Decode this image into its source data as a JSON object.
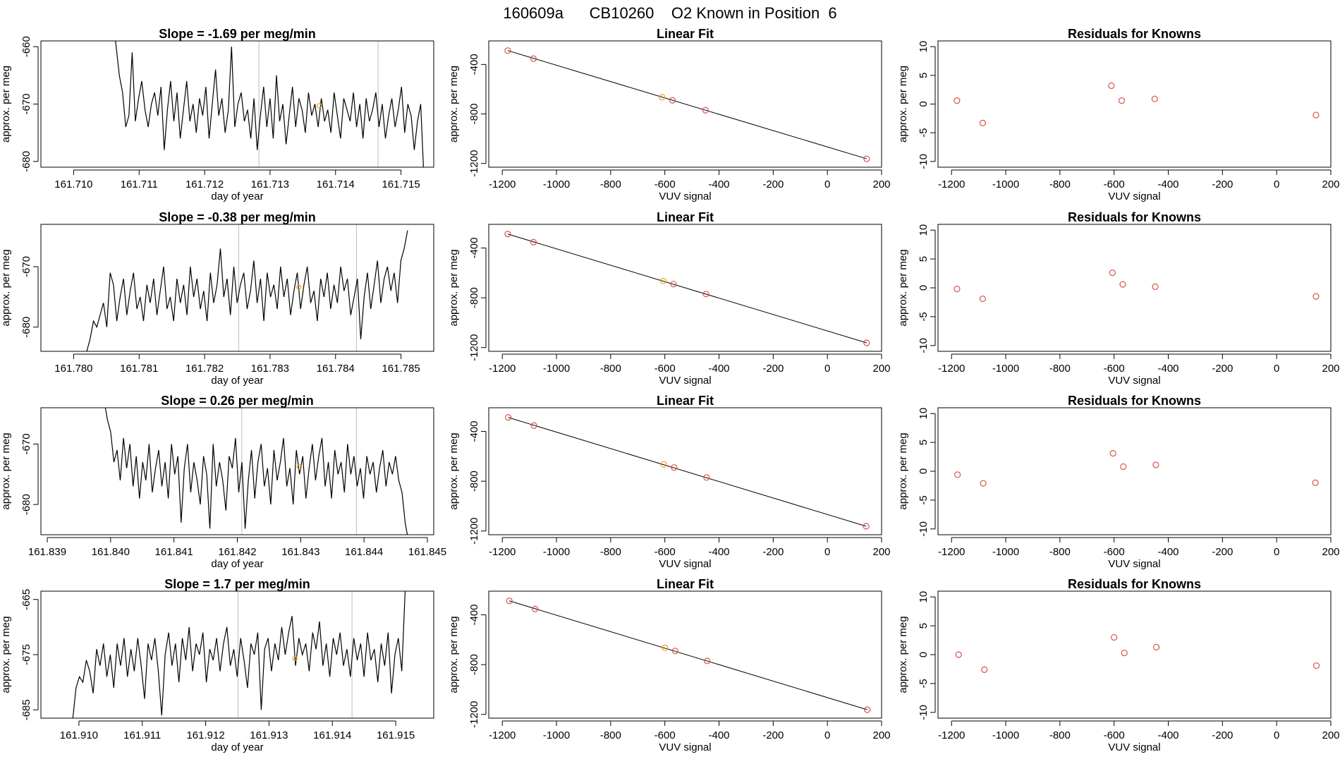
{
  "figure_title": "160609a      CB10260    O2 Known in Position  6",
  "colors": {
    "trace": "#000000",
    "fit_line": "#000000",
    "known_points": "#d9534f",
    "highlight_point": "#f0a020",
    "marker_lines": "#bbbbbb",
    "frame": "#000000"
  },
  "chart_data": [
    {
      "type": "line",
      "row": 0,
      "col": 0,
      "title": "Slope =  -1.69  per meg/min",
      "xlabel": "day of year",
      "ylabel": "approx. per meg",
      "xlim": [
        161.7095,
        161.7155
      ],
      "ylim": [
        -681,
        -659
      ],
      "xticks": [
        "161.710",
        "161.711",
        "161.712",
        "161.713",
        "161.714",
        "161.715"
      ],
      "xtick_values": [
        161.71,
        161.711,
        161.712,
        161.713,
        161.714,
        161.715
      ],
      "yticks": [
        "-680",
        "-670",
        "-660"
      ],
      "ytick_values": [
        -680,
        -670,
        -660
      ],
      "vlines": [
        161.71283,
        161.71465
      ],
      "highlight": {
        "x": 161.71375,
        "y": -670.3
      },
      "trace": {
        "x0": 161.7106,
        "x1": 161.71535,
        "y": [
          -655,
          -660,
          -665,
          -668,
          -674,
          -672,
          -661,
          -673,
          -669,
          -666,
          -671,
          -674,
          -670,
          -668,
          -672,
          -667,
          -678,
          -671,
          -666,
          -673,
          -668,
          -676,
          -671,
          -666,
          -673,
          -670,
          -675,
          -669,
          -672,
          -667,
          -676,
          -670,
          -664,
          -672,
          -669,
          -675,
          -671,
          -660,
          -674,
          -670,
          -668,
          -673,
          -671,
          -676,
          -669,
          -678,
          -672,
          -667,
          -674,
          -669,
          -676,
          -665,
          -673,
          -670,
          -677,
          -672,
          -667,
          -674,
          -669,
          -671,
          -675,
          -668,
          -672,
          -670,
          -674,
          -669,
          -673,
          -671,
          -675,
          -668,
          -672,
          -676,
          -669,
          -671,
          -673,
          -668,
          -674,
          -670,
          -676,
          -669,
          -673,
          -671,
          -668,
          -674,
          -670,
          -676,
          -672,
          -669,
          -674,
          -671,
          -667,
          -675,
          -670,
          -672,
          -678,
          -673,
          -670,
          -683
        ]
      }
    },
    {
      "type": "scatter",
      "row": 0,
      "col": 1,
      "title": "Linear Fit",
      "xlabel": "VUV signal",
      "ylabel": "approx. per meg",
      "xlim": [
        -1250,
        200
      ],
      "ylim": [
        -1230,
        -210
      ],
      "xticks": [
        "-1200",
        "-1000",
        "-800",
        "-600",
        "-400",
        "-200",
        "0",
        "200"
      ],
      "xtick_values": [
        -1200,
        -1000,
        -800,
        -600,
        -400,
        -200,
        0,
        200
      ],
      "yticks": [
        "-1200",
        "-800",
        "-400"
      ],
      "ytick_values": [
        -1200,
        -800,
        -400
      ],
      "fit_line": [
        [
          -1180,
          -288
        ],
        [
          145,
          -1162
        ]
      ],
      "points": [
        [
          -1180,
          -288
        ],
        [
          -1085,
          -353
        ],
        [
          -610,
          -665
        ],
        [
          -572,
          -690
        ],
        [
          -450,
          -770
        ],
        [
          145,
          -1162
        ]
      ],
      "highlight_index": 2
    },
    {
      "type": "scatter",
      "row": 0,
      "col": 2,
      "title": "Residuals for Knowns",
      "xlabel": "VUV signal",
      "ylabel": "approx. per meg",
      "xlim": [
        -1250,
        200
      ],
      "ylim": [
        -11,
        11
      ],
      "xticks": [
        "-1200",
        "-1000",
        "-800",
        "-600",
        "-400",
        "-200",
        "0",
        "200"
      ],
      "xtick_values": [
        -1200,
        -1000,
        -800,
        -600,
        -400,
        -200,
        0,
        200
      ],
      "yticks": [
        "-10",
        "-5",
        "0",
        "5",
        "10"
      ],
      "ytick_values": [
        -10,
        -5,
        0,
        5,
        10
      ],
      "points": [
        [
          -1180,
          0.6
        ],
        [
          -1085,
          -3.3
        ],
        [
          -610,
          3.2
        ],
        [
          -572,
          0.6
        ],
        [
          -450,
          0.9
        ],
        [
          145,
          -1.9
        ]
      ]
    },
    {
      "type": "line",
      "row": 1,
      "col": 0,
      "title": "Slope =  -0.38  per meg/min",
      "xlabel": "day of year",
      "ylabel": "approx. per meg",
      "xlim": [
        161.7795,
        161.7855
      ],
      "ylim": [
        -684,
        -663
      ],
      "xticks": [
        "161.780",
        "161.781",
        "161.782",
        "161.783",
        "161.784",
        "161.785"
      ],
      "xtick_values": [
        161.78,
        161.781,
        161.782,
        161.783,
        161.784,
        161.785
      ],
      "yticks": [
        "-680",
        "-670"
      ],
      "ytick_values": [
        -680,
        -670
      ],
      "vlines": [
        161.78252,
        161.78432
      ],
      "highlight": {
        "x": 161.78344,
        "y": -673.4
      },
      "trace": {
        "x0": 161.7802,
        "x1": 161.7851,
        "y": [
          -684,
          -682,
          -679,
          -680,
          -678,
          -676,
          -680,
          -671,
          -673,
          -679,
          -675,
          -672,
          -678,
          -674,
          -671,
          -677,
          -675,
          -679,
          -673,
          -676,
          -672,
          -678,
          -674,
          -670,
          -677,
          -675,
          -679,
          -672,
          -676,
          -673,
          -678,
          -670,
          -675,
          -672,
          -677,
          -674,
          -679,
          -671,
          -676,
          -673,
          -667,
          -675,
          -672,
          -678,
          -670,
          -676,
          -673,
          -671,
          -677,
          -674,
          -669,
          -676,
          -672,
          -679,
          -671,
          -675,
          -673,
          -677,
          -670,
          -675,
          -672,
          -678,
          -674,
          -671,
          -677,
          -673,
          -670,
          -676,
          -674,
          -679,
          -672,
          -675,
          -671,
          -677,
          -673,
          -676,
          -670,
          -674,
          -672,
          -678,
          -675,
          -672,
          -682,
          -675,
          -671,
          -677,
          -673,
          -669,
          -676,
          -672,
          -670,
          -674,
          -671,
          -676,
          -669,
          -667,
          -664
        ]
      }
    },
    {
      "type": "scatter",
      "row": 1,
      "col": 1,
      "title": "Linear Fit",
      "xlabel": "VUV signal",
      "ylabel": "approx. per meg",
      "xlim": [
        -1250,
        200
      ],
      "ylim": [
        -1230,
        -210
      ],
      "xticks": [
        "-1200",
        "-1000",
        "-800",
        "-600",
        "-400",
        "-200",
        "0",
        "200"
      ],
      "xtick_values": [
        -1200,
        -1000,
        -800,
        -600,
        -400,
        -200,
        0,
        200
      ],
      "yticks": [
        "-1200",
        "-800",
        "-400"
      ],
      "ytick_values": [
        -1200,
        -800,
        -400
      ],
      "fit_line": [
        [
          -1180,
          -288
        ],
        [
          145,
          -1162
        ]
      ],
      "points": [
        [
          -1180,
          -288
        ],
        [
          -1085,
          -353
        ],
        [
          -606,
          -665
        ],
        [
          -568,
          -690
        ],
        [
          -448,
          -770
        ],
        [
          145,
          -1162
        ]
      ],
      "highlight_index": 2
    },
    {
      "type": "scatter",
      "row": 1,
      "col": 2,
      "title": "Residuals for Knowns",
      "xlabel": "VUV signal",
      "ylabel": "approx. per meg",
      "xlim": [
        -1250,
        200
      ],
      "ylim": [
        -11,
        11
      ],
      "xticks": [
        "-1200",
        "-1000",
        "-800",
        "-600",
        "-400",
        "-200",
        "0",
        "200"
      ],
      "xtick_values": [
        -1200,
        -1000,
        -800,
        -600,
        -400,
        -200,
        0,
        200
      ],
      "yticks": [
        "-10",
        "-5",
        "0",
        "5",
        "10"
      ],
      "ytick_values": [
        -10,
        -5,
        0,
        5,
        10
      ],
      "points": [
        [
          -1180,
          -0.2
        ],
        [
          -1085,
          -1.9
        ],
        [
          -606,
          2.6
        ],
        [
          -568,
          0.6
        ],
        [
          -448,
          0.2
        ],
        [
          145,
          -1.5
        ]
      ]
    },
    {
      "type": "line",
      "row": 2,
      "col": 0,
      "title": "Slope =  0.26  per meg/min",
      "xlabel": "day of year",
      "ylabel": "approx. per meg",
      "xlim": [
        161.8389,
        161.8451
      ],
      "ylim": [
        -685,
        -664
      ],
      "xticks": [
        "161.839",
        "161.840",
        "161.841",
        "161.842",
        "161.843",
        "161.844",
        "161.845"
      ],
      "xtick_values": [
        161.839,
        161.84,
        161.841,
        161.842,
        161.843,
        161.844,
        161.845
      ],
      "yticks": [
        "-680",
        "-670"
      ],
      "ytick_values": [
        -680,
        -670
      ],
      "vlines": [
        161.84207,
        161.84388
      ],
      "highlight": {
        "x": 161.84298,
        "y": -673.8
      },
      "trace": {
        "x0": 161.8399,
        "x1": 161.8447,
        "y": [
          -663,
          -666,
          -668,
          -673,
          -671,
          -676,
          -669,
          -674,
          -670,
          -677,
          -672,
          -679,
          -673,
          -676,
          -670,
          -678,
          -674,
          -671,
          -677,
          -673,
          -679,
          -670,
          -675,
          -672,
          -683,
          -674,
          -670,
          -678,
          -673,
          -676,
          -680,
          -672,
          -675,
          -684,
          -670,
          -677,
          -673,
          -676,
          -681,
          -672,
          -674,
          -669,
          -678,
          -673,
          -684,
          -676,
          -671,
          -679,
          -673,
          -670,
          -677,
          -674,
          -680,
          -671,
          -676,
          -673,
          -669,
          -677,
          -674,
          -680,
          -671,
          -675,
          -672,
          -679,
          -674,
          -670,
          -676,
          -672,
          -669,
          -677,
          -673,
          -679,
          -671,
          -675,
          -673,
          -678,
          -670,
          -675,
          -672,
          -677,
          -674,
          -679,
          -672,
          -675,
          -673,
          -678,
          -674,
          -671,
          -677,
          -673,
          -675,
          -672,
          -676,
          -678,
          -683,
          -686
        ]
      }
    },
    {
      "type": "scatter",
      "row": 2,
      "col": 1,
      "title": "Linear Fit",
      "xlabel": "VUV signal",
      "ylabel": "approx. per meg",
      "xlim": [
        -1250,
        200
      ],
      "ylim": [
        -1230,
        -210
      ],
      "xticks": [
        "-1200",
        "-1000",
        "-800",
        "-600",
        "-400",
        "-200",
        "0",
        "200"
      ],
      "xtick_values": [
        -1200,
        -1000,
        -800,
        -600,
        -400,
        -200,
        0,
        200
      ],
      "yticks": [
        "-1200",
        "-800",
        "-400"
      ],
      "ytick_values": [
        -1200,
        -800,
        -400
      ],
      "fit_line": [
        [
          -1178,
          -288
        ],
        [
          143,
          -1162
        ]
      ],
      "points": [
        [
          -1178,
          -288
        ],
        [
          -1083,
          -353
        ],
        [
          -604,
          -665
        ],
        [
          -566,
          -690
        ],
        [
          -446,
          -770
        ],
        [
          143,
          -1162
        ]
      ],
      "highlight_index": 2
    },
    {
      "type": "scatter",
      "row": 2,
      "col": 2,
      "title": "Residuals for Knowns",
      "xlabel": "VUV signal",
      "ylabel": "approx. per meg",
      "xlim": [
        -1250,
        200
      ],
      "ylim": [
        -11,
        11
      ],
      "xticks": [
        "-1200",
        "-1000",
        "-800",
        "-600",
        "-400",
        "-200",
        "0",
        "200"
      ],
      "xtick_values": [
        -1200,
        -1000,
        -800,
        -600,
        -400,
        -200,
        0,
        200
      ],
      "yticks": [
        "-10",
        "-5",
        "0",
        "5",
        "10"
      ],
      "ytick_values": [
        -10,
        -5,
        0,
        5,
        10
      ],
      "points": [
        [
          -1178,
          -0.6
        ],
        [
          -1083,
          -2.1
        ],
        [
          -604,
          3.1
        ],
        [
          -566,
          0.8
        ],
        [
          -446,
          1.1
        ],
        [
          143,
          -2.0
        ]
      ]
    },
    {
      "type": "line",
      "row": 3,
      "col": 0,
      "title": "Slope =  1.7  per meg/min",
      "xlabel": "day of year",
      "ylabel": "approx. per meg",
      "xlim": [
        161.9094,
        161.9156
      ],
      "ylim": [
        -686.5,
        -663.5
      ],
      "xticks": [
        "161.910",
        "161.911",
        "161.912",
        "161.913",
        "161.914",
        "161.915"
      ],
      "xtick_values": [
        161.91,
        161.911,
        161.912,
        161.913,
        161.914,
        161.915
      ],
      "yticks": [
        "-685",
        "-675",
        "-665"
      ],
      "ytick_values": [
        -685,
        -675,
        -665
      ],
      "vlines": [
        161.91251,
        161.91431
      ],
      "highlight": {
        "x": 161.91341,
        "y": -675.7
      },
      "trace": {
        "x0": 161.9099,
        "x1": 161.91515,
        "y": [
          -687,
          -681,
          -679,
          -680,
          -676,
          -678,
          -682,
          -674,
          -677,
          -673,
          -679,
          -675,
          -681,
          -673,
          -677,
          -672,
          -679,
          -674,
          -678,
          -672,
          -677,
          -683,
          -673,
          -676,
          -672,
          -678,
          -686,
          -675,
          -671,
          -677,
          -673,
          -680,
          -672,
          -676,
          -670,
          -678,
          -673,
          -675,
          -671,
          -680,
          -674,
          -676,
          -672,
          -678,
          -673,
          -670,
          -677,
          -674,
          -679,
          -672,
          -676,
          -681,
          -673,
          -675,
          -671,
          -685,
          -674,
          -672,
          -678,
          -673,
          -676,
          -670,
          -675,
          -671,
          -668,
          -677,
          -672,
          -675,
          -673,
          -678,
          -671,
          -674,
          -669,
          -677,
          -673,
          -679,
          -672,
          -675,
          -671,
          -677,
          -674,
          -679,
          -672,
          -676,
          -673,
          -679,
          -671,
          -676,
          -674,
          -680,
          -673,
          -677,
          -671,
          -682,
          -675,
          -672,
          -678,
          -663
        ]
      }
    },
    {
      "type": "scatter",
      "row": 3,
      "col": 1,
      "title": "Linear Fit",
      "xlabel": "VUV signal",
      "ylabel": "approx. per meg",
      "xlim": [
        -1250,
        200
      ],
      "ylim": [
        -1230,
        -210
      ],
      "xticks": [
        "-1200",
        "-1000",
        "-800",
        "-600",
        "-400",
        "-200",
        "0",
        "200"
      ],
      "xtick_values": [
        -1200,
        -1000,
        -800,
        -600,
        -400,
        -200,
        0,
        200
      ],
      "yticks": [
        "-1200",
        "-800",
        "-400"
      ],
      "ytick_values": [
        -1200,
        -800,
        -400
      ],
      "fit_line": [
        [
          -1174,
          -288
        ],
        [
          147,
          -1162
        ]
      ],
      "points": [
        [
          -1174,
          -288
        ],
        [
          -1079,
          -353
        ],
        [
          -600,
          -665
        ],
        [
          -562,
          -690
        ],
        [
          -444,
          -770
        ],
        [
          147,
          -1162
        ]
      ],
      "highlight_index": 2
    },
    {
      "type": "scatter",
      "row": 3,
      "col": 2,
      "title": "Residuals for Knowns",
      "xlabel": "VUV signal",
      "ylabel": "approx. per meg",
      "xlim": [
        -1250,
        200
      ],
      "ylim": [
        -11,
        11
      ],
      "xticks": [
        "-1200",
        "-1000",
        "-800",
        "-600",
        "-400",
        "-200",
        "0",
        "200"
      ],
      "xtick_values": [
        -1200,
        -1000,
        -800,
        -600,
        -400,
        -200,
        0,
        200
      ],
      "yticks": [
        "-10",
        "-5",
        "0",
        "5",
        "10"
      ],
      "ytick_values": [
        -10,
        -5,
        0,
        5,
        10
      ],
      "points": [
        [
          -1174,
          0.0
        ],
        [
          -1079,
          -2.6
        ],
        [
          -600,
          3.0
        ],
        [
          -562,
          0.3
        ],
        [
          -444,
          1.3
        ],
        [
          147,
          -1.9
        ]
      ]
    }
  ]
}
